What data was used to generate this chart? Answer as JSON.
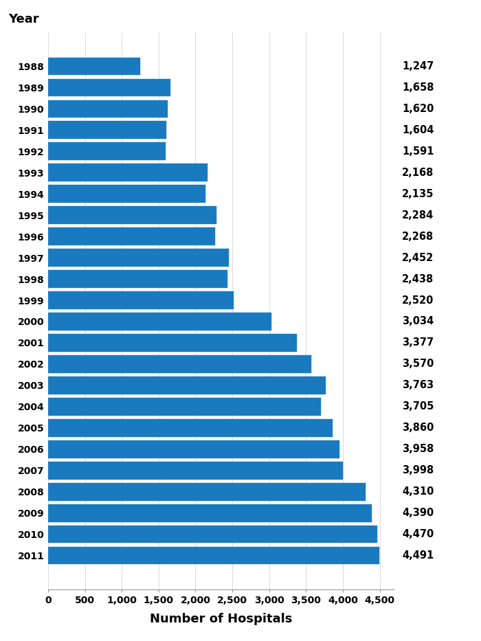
{
  "years": [
    "1988",
    "1989",
    "1990",
    "1991",
    "1992",
    "1993",
    "1994",
    "1995",
    "1996",
    "1997",
    "1998",
    "1999",
    "2000",
    "2001",
    "2002",
    "2003",
    "2004",
    "2005",
    "2006",
    "2007",
    "2008",
    "2009",
    "2010",
    "2011"
  ],
  "values": [
    1247,
    1658,
    1620,
    1604,
    1591,
    2168,
    2135,
    2284,
    2268,
    2452,
    2438,
    2520,
    3034,
    3377,
    3570,
    3763,
    3705,
    3860,
    3958,
    3998,
    4310,
    4390,
    4470,
    4491
  ],
  "bar_color": "#1a7abf",
  "bar_edge_color": "#1a7abf",
  "xlabel": "Number of Hospitals",
  "xlim": [
    0,
    4700
  ],
  "xticks": [
    0,
    500,
    1000,
    1500,
    2000,
    2500,
    3000,
    3500,
    4000,
    4500
  ],
  "title": "Year",
  "background_color": "#ffffff",
  "label_fontsize": 10.5,
  "tick_fontsize": 10,
  "xlabel_fontsize": 13,
  "year_label_fontsize": 13
}
